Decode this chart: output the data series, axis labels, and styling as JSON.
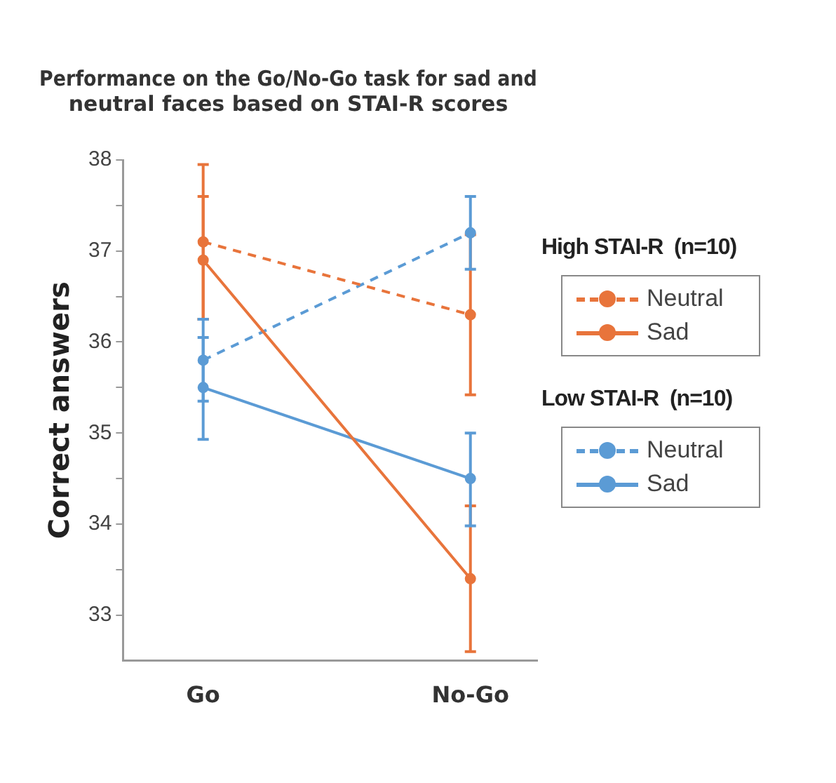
{
  "chart_data": {
    "type": "line",
    "title": "Performance on the Go/No-Go task for sad and neutral faces based on STAI-R scores",
    "ylabel": "Correct answers",
    "categories": [
      "Go",
      "No-Go"
    ],
    "series": [
      {
        "name": "Neutral",
        "color": "#e8743b",
        "line_style": "dashed",
        "values": [
          37.1,
          36.3
        ],
        "errors": [
          [
            36.25,
            37.95
          ],
          [
            35.42,
            37.18
          ]
        ]
      },
      {
        "name": "Sad",
        "color": "#e8743b",
        "line_style": "solid",
        "values": [
          36.9,
          33.4
        ],
        "errors": [
          [
            36.25,
            37.6
          ],
          [
            32.6,
            34.2
          ]
        ]
      },
      {
        "name": "Neutral",
        "color": "#5b9bd5",
        "line_style": "dashed",
        "values": [
          35.8,
          37.2
        ],
        "errors": [
          [
            35.35,
            36.25
          ],
          [
            36.8,
            37.6
          ]
        ]
      },
      {
        "name": "Sad",
        "color": "#5b9bd5",
        "line_style": "solid",
        "values": [
          35.5,
          34.5
        ],
        "errors": [
          [
            34.93,
            36.05
          ],
          [
            33.98,
            35.0
          ]
        ]
      }
    ],
    "annotations": [
      "High STAI-R  (n=10)",
      "Low STAI-R  (n=10)"
    ],
    "ylim": [
      32.5,
      38
    ],
    "yticks": [
      33,
      {
        "value": 33.5,
        "label": null
      },
      34,
      {
        "value": 34.5,
        "label": null
      },
      35,
      {
        "value": 35.5,
        "label": null
      },
      36,
      {
        "value": 36.5,
        "label": null
      },
      37,
      {
        "value": 37.5,
        "label": null
      },
      38
    ],
    "marker": "circle",
    "grid": false,
    "legend": "right"
  }
}
